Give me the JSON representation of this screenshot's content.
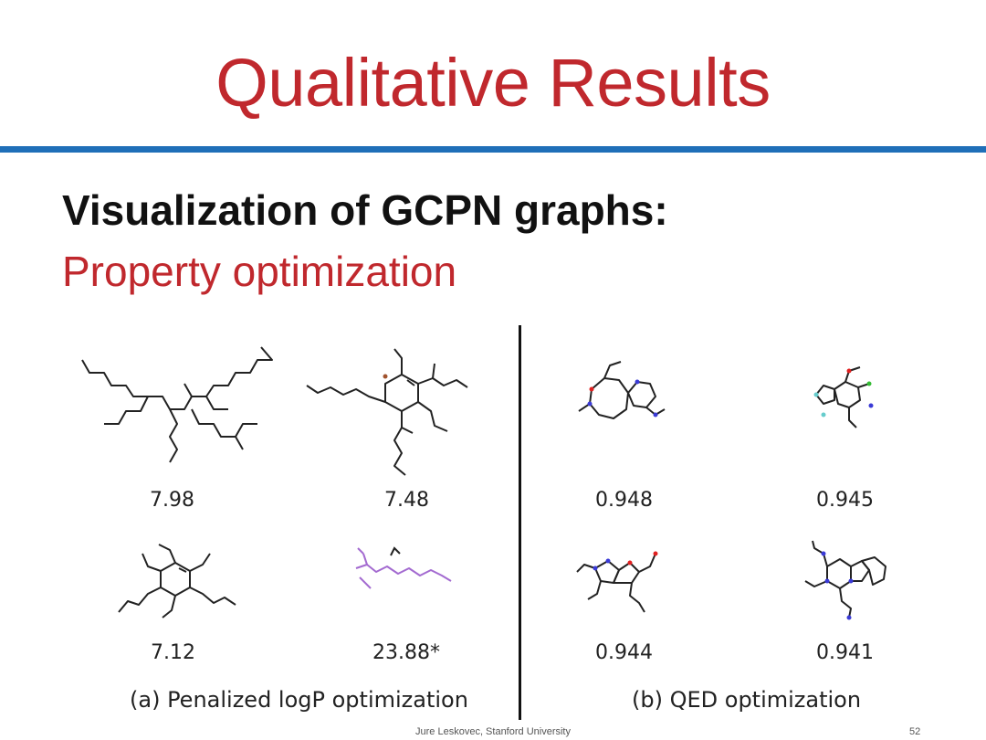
{
  "slide": {
    "title": "Qualitative Results",
    "heading": "Visualization of GCPN graphs:",
    "subheading": "Property optimization"
  },
  "panel_a": {
    "caption": "(a) Penalized logP optimization",
    "scores": [
      "7.98",
      "7.48",
      "7.12",
      "23.88*"
    ]
  },
  "panel_b": {
    "caption": "(b) QED optimization",
    "scores": [
      "0.948",
      "0.945",
      "0.944",
      "0.941"
    ]
  },
  "footer": {
    "credit": "Jure Leskovec, Stanford University",
    "page_number": "52"
  },
  "colors": {
    "title_red": "#c0282d",
    "rule_blue": "#1f6fb8",
    "bond": "#222222",
    "nitrogen": "#3a3ad6",
    "oxygen": "#e02020",
    "fluorine": "#66cccc",
    "chlorine": "#33bb33",
    "bromine": "#a0522d",
    "purple": "#a36ad0"
  }
}
